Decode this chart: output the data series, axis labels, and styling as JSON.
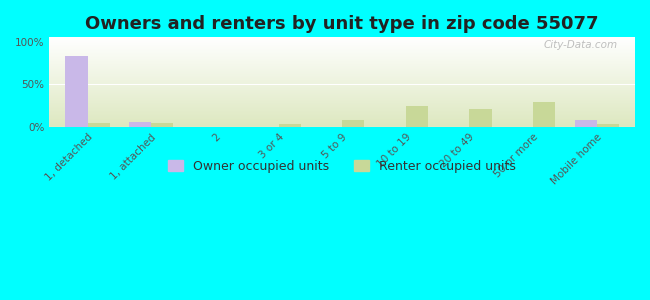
{
  "title": "Owners and renters by unit type in zip code 55077",
  "categories": [
    "1, detached",
    "1, attached",
    "2",
    "3 or 4",
    "5 to 9",
    "10 to 19",
    "20 to 49",
    "50 or more",
    "Mobile home"
  ],
  "owner_values": [
    83,
    6,
    0,
    0,
    0,
    0.5,
    0,
    0,
    8
  ],
  "renter_values": [
    5,
    5,
    0,
    4,
    9,
    25,
    21,
    30,
    4
  ],
  "owner_color": "#c9b8e8",
  "renter_color": "#c8d898",
  "background_color": "#00ffff",
  "plot_bg_colors": [
    "#ffffff",
    "#e8f0d0"
  ],
  "ylabel_ticks": [
    "0%",
    "50%",
    "100%"
  ],
  "ytick_vals": [
    0,
    50,
    100
  ],
  "ylim": [
    0,
    105
  ],
  "bar_width": 0.35,
  "watermark": "City-Data.com",
  "legend_owner": "Owner occupied units",
  "legend_renter": "Renter occupied units",
  "title_fontsize": 13,
  "tick_fontsize": 7.5,
  "legend_fontsize": 9
}
